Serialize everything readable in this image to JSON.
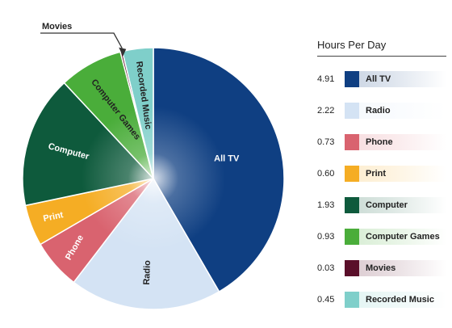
{
  "chart_data": {
    "type": "pie",
    "legend_title": "Hours Per Day",
    "legend_position": "right",
    "slices": [
      {
        "name": "All TV",
        "value": 4.91,
        "display": "4.91",
        "color": "#0f3f82",
        "label_color": "#ffffff"
      },
      {
        "name": "Radio",
        "value": 2.22,
        "display": "2.22",
        "color": "#d4e3f4",
        "label_color": "#222222"
      },
      {
        "name": "Phone",
        "value": 0.73,
        "display": "0.73",
        "color": "#d9636f",
        "label_color": "#ffffff"
      },
      {
        "name": "Print",
        "value": 0.6,
        "display": "0.60",
        "color": "#f5ad24",
        "label_color": "#ffffff"
      },
      {
        "name": "Computer",
        "value": 1.93,
        "display": "1.93",
        "color": "#0e5a3c",
        "label_color": "#ffffff"
      },
      {
        "name": "Computer Games",
        "value": 0.93,
        "display": "0.93",
        "color": "#4aad3a",
        "label_color": "#222222"
      },
      {
        "name": "Movies",
        "value": 0.03,
        "display": "0.03",
        "color": "#5a0f2a",
        "label_color": "#222222"
      },
      {
        "name": "Recorded Music",
        "value": 0.45,
        "display": "0.45",
        "color": "#7fcfca",
        "label_color": "#222222"
      }
    ],
    "callout": "Movies"
  }
}
